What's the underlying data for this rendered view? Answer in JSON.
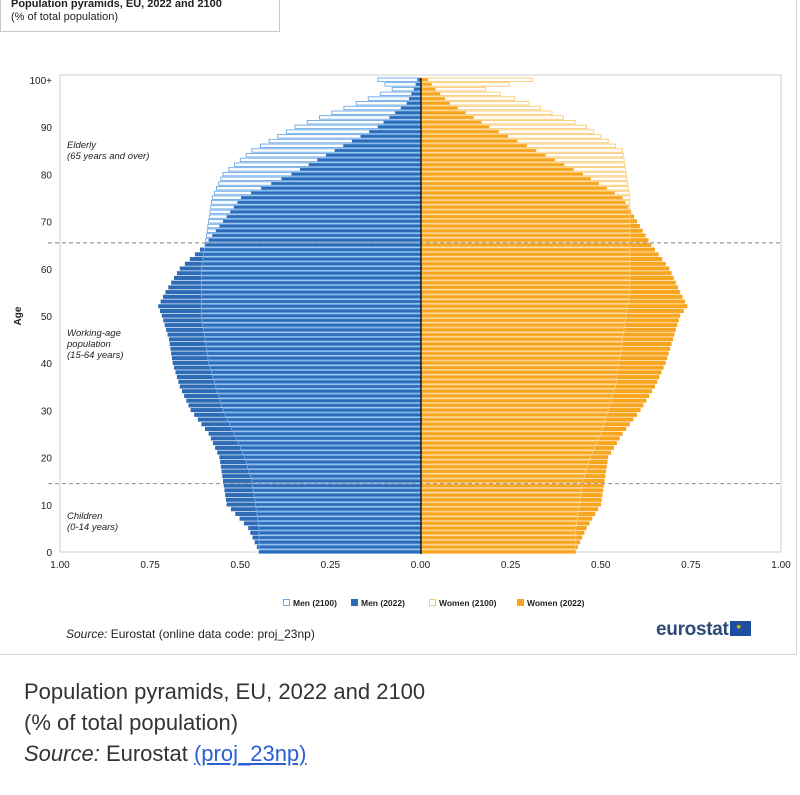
{
  "header": {
    "title": "Population pyramids, EU, 2022 and 2100",
    "subtitle": "(% of total population)"
  },
  "chart_data": {
    "type": "bar",
    "orientation": "horizontal-pyramid",
    "ylabel": "Age",
    "y_ticks": [
      "0",
      "10",
      "20",
      "30",
      "40",
      "50",
      "60",
      "70",
      "80",
      "90",
      "100+"
    ],
    "x_ticks": [
      "1.00",
      "0.75",
      "0.50",
      "0.25",
      "0.00",
      "0.25",
      "0.50",
      "0.75",
      "1.00"
    ],
    "xlim": [
      -1,
      1
    ],
    "ylim": [
      0,
      100
    ],
    "reference_lines": [
      65,
      14
    ],
    "annotations": [
      [
        "Elderly",
        "(65 years and over)"
      ],
      [
        "Working-age",
        "population",
        "(15-64 years)"
      ],
      [
        "Children",
        "(0-14 years)"
      ]
    ],
    "legend_position": "bottom",
    "series": [
      {
        "name": "Men (2100)",
        "side": "left",
        "style": "outline",
        "color": "#6aa8e6",
        "ages": [
          0,
          5,
          10,
          15,
          20,
          25,
          30,
          35,
          40,
          45,
          50,
          55,
          60,
          65,
          70,
          75,
          80,
          85,
          90,
          95,
          98,
          100
        ],
        "values": [
          0.45,
          0.45,
          0.46,
          0.47,
          0.49,
          0.52,
          0.55,
          0.57,
          0.59,
          0.6,
          0.61,
          0.61,
          0.61,
          0.6,
          0.59,
          0.58,
          0.55,
          0.47,
          0.35,
          0.18,
          0.08,
          0.12
        ]
      },
      {
        "name": "Men (2022)",
        "side": "left",
        "style": "filled",
        "color": "#2e6bb6",
        "ages": [
          0,
          5,
          10,
          15,
          20,
          25,
          30,
          35,
          40,
          45,
          50,
          52,
          55,
          60,
          65,
          70,
          75,
          80,
          85,
          90,
          95,
          98,
          100
        ],
        "values": [
          0.45,
          0.48,
          0.54,
          0.55,
          0.56,
          0.59,
          0.64,
          0.67,
          0.69,
          0.7,
          0.72,
          0.73,
          0.71,
          0.67,
          0.6,
          0.55,
          0.5,
          0.36,
          0.24,
          0.12,
          0.04,
          0.02,
          0.01
        ]
      },
      {
        "name": "Women (2100)",
        "side": "right",
        "style": "outline",
        "color": "#fbc973",
        "ages": [
          0,
          5,
          10,
          15,
          20,
          25,
          30,
          35,
          40,
          45,
          50,
          55,
          60,
          65,
          70,
          75,
          80,
          85,
          90,
          95,
          98,
          100
        ],
        "values": [
          0.43,
          0.43,
          0.44,
          0.45,
          0.47,
          0.5,
          0.52,
          0.54,
          0.55,
          0.56,
          0.57,
          0.58,
          0.58,
          0.58,
          0.58,
          0.58,
          0.57,
          0.56,
          0.46,
          0.3,
          0.18,
          0.31
        ]
      },
      {
        "name": "Women (2022)",
        "side": "right",
        "style": "filled",
        "color": "#f7a51e",
        "ages": [
          0,
          5,
          10,
          15,
          20,
          25,
          30,
          35,
          40,
          45,
          50,
          52,
          55,
          60,
          65,
          70,
          75,
          80,
          85,
          90,
          95,
          98,
          100
        ],
        "values": [
          0.43,
          0.46,
          0.5,
          0.51,
          0.52,
          0.56,
          0.61,
          0.65,
          0.68,
          0.7,
          0.72,
          0.74,
          0.72,
          0.69,
          0.64,
          0.6,
          0.56,
          0.45,
          0.32,
          0.19,
          0.08,
          0.04,
          0.02
        ]
      }
    ]
  },
  "source": {
    "label": "Source:",
    "text": " Eurostat (online data code: proj_23np)"
  },
  "logo": {
    "text": "eurostat"
  },
  "caption": {
    "title": "Population pyramids, EU, 2022 and 2100",
    "subtitle": "(% of total population)",
    "source_label": "Source:",
    "source_text": " Eurostat ",
    "link_text": "(proj_23np)"
  }
}
